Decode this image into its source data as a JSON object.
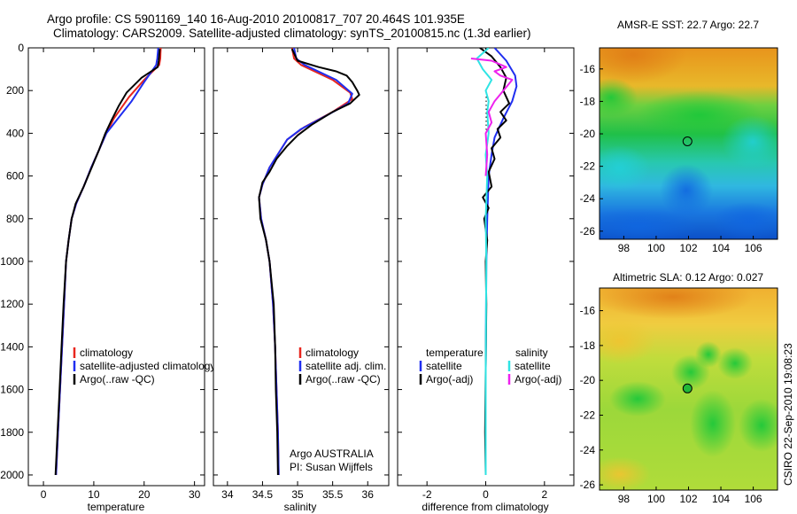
{
  "header": {
    "line1": "Argo profile: CS 5901169_140 16-Aug-2010 20100817_707 20.464S 101.935E",
    "line2": "Climatology: CARS2009. Satellite-adjusted climatology: synTS_20100815.nc (1.3d earlier)"
  },
  "colors": {
    "climatology": "#e8261e",
    "satellite": "#1f2ef0",
    "argo": "#000000",
    "salinity_satellite": "#2fe4e4",
    "salinity_argo": "#ee22ee"
  },
  "chart_data": [
    {
      "type": "line",
      "id": "temperature",
      "xlabel": "temperature",
      "ylabel": "",
      "xlim": [
        -3,
        32
      ],
      "ylim": [
        2050,
        0
      ],
      "xticks": [
        0,
        10,
        20,
        30
      ],
      "yticks": [
        0,
        200,
        400,
        600,
        800,
        1000,
        1200,
        1400,
        1600,
        1800,
        2000
      ],
      "legend": [
        "climatology",
        "satellite-adjusted climatology",
        "Argo(..raw -QC)"
      ],
      "series": [
        {
          "name": "climatology",
          "color": "#e8261e",
          "points": [
            [
              23.3,
              0
            ],
            [
              23.2,
              50
            ],
            [
              23.0,
              80
            ],
            [
              20.0,
              150
            ],
            [
              17.0,
              230
            ],
            [
              14.0,
              330
            ],
            [
              12.5,
              400
            ],
            [
              11.0,
              480
            ],
            [
              9.5,
              560
            ],
            [
              8.0,
              650
            ],
            [
              6.5,
              730
            ],
            [
              5.6,
              800
            ],
            [
              5.0,
              900
            ],
            [
              4.5,
              1000
            ],
            [
              4.1,
              1200
            ],
            [
              3.7,
              1400
            ],
            [
              3.3,
              1600
            ],
            [
              2.9,
              1800
            ],
            [
              2.5,
              2000
            ]
          ]
        },
        {
          "name": "satellite-adjusted climatology",
          "color": "#1f2ef0",
          "points": [
            [
              22.8,
              0
            ],
            [
              22.6,
              50
            ],
            [
              22.4,
              80
            ],
            [
              20.0,
              160
            ],
            [
              17.5,
              250
            ],
            [
              14.5,
              340
            ],
            [
              12.5,
              400
            ],
            [
              11.0,
              480
            ],
            [
              9.5,
              560
            ],
            [
              8.0,
              650
            ],
            [
              6.5,
              730
            ],
            [
              5.6,
              800
            ],
            [
              5.0,
              900
            ],
            [
              4.5,
              1000
            ],
            [
              4.1,
              1200
            ],
            [
              3.7,
              1400
            ],
            [
              3.3,
              1600
            ],
            [
              2.9,
              1800
            ],
            [
              2.5,
              2000
            ]
          ]
        },
        {
          "name": "Argo(..raw -QC)",
          "color": "#000000",
          "points": [
            [
              23.1,
              5
            ],
            [
              22.9,
              60
            ],
            [
              22.7,
              90
            ],
            [
              19.5,
              140
            ],
            [
              16.5,
              210
            ],
            [
              15.0,
              270
            ],
            [
              13.5,
              340
            ],
            [
              12.3,
              400
            ],
            [
              11.0,
              480
            ],
            [
              9.6,
              560
            ],
            [
              8.0,
              650
            ],
            [
              6.4,
              730
            ],
            [
              5.6,
              800
            ],
            [
              5.0,
              900
            ],
            [
              4.5,
              1000
            ],
            [
              4.0,
              1200
            ],
            [
              3.6,
              1400
            ],
            [
              3.2,
              1600
            ],
            [
              2.8,
              1800
            ],
            [
              2.4,
              2000
            ]
          ]
        }
      ]
    },
    {
      "type": "line",
      "id": "salinity",
      "xlabel": "salinity",
      "ylabel": "",
      "xlim": [
        33.8,
        36.3
      ],
      "ylim": [
        2050,
        0
      ],
      "xticks": [
        34,
        34.5,
        35,
        35.5,
        36
      ],
      "legend": [
        "climatology",
        "satellite adj. clim.",
        "Argo(..raw -QC)"
      ],
      "annotations": [
        "Argo AUSTRALIA",
        "PI: Susan Wijffels"
      ],
      "series": [
        {
          "name": "climatology",
          "color": "#e8261e",
          "points": [
            [
              34.92,
              0
            ],
            [
              34.95,
              50
            ],
            [
              35.05,
              80
            ],
            [
              35.5,
              150
            ],
            [
              35.75,
              210
            ],
            [
              35.78,
              240
            ],
            [
              35.5,
              300
            ],
            [
              35.1,
              370
            ],
            [
              34.85,
              430
            ],
            [
              34.6,
              560
            ],
            [
              34.5,
              640
            ],
            [
              34.45,
              700
            ],
            [
              34.48,
              800
            ],
            [
              34.55,
              900
            ],
            [
              34.6,
              1000
            ],
            [
              34.65,
              1200
            ],
            [
              34.68,
              1400
            ],
            [
              34.7,
              1600
            ],
            [
              34.72,
              1800
            ],
            [
              34.73,
              2000
            ]
          ]
        },
        {
          "name": "satellite adj. clim.",
          "color": "#1f2ef0",
          "points": [
            [
              34.95,
              0
            ],
            [
              34.98,
              50
            ],
            [
              35.1,
              80
            ],
            [
              35.55,
              150
            ],
            [
              35.78,
              215
            ],
            [
              35.72,
              260
            ],
            [
              35.45,
              310
            ],
            [
              35.05,
              380
            ],
            [
              34.85,
              430
            ],
            [
              34.6,
              560
            ],
            [
              34.5,
              640
            ],
            [
              34.45,
              700
            ],
            [
              34.48,
              800
            ],
            [
              34.55,
              900
            ],
            [
              34.6,
              1000
            ],
            [
              34.65,
              1200
            ],
            [
              34.68,
              1400
            ],
            [
              34.7,
              1600
            ],
            [
              34.72,
              1800
            ],
            [
              34.73,
              2000
            ]
          ]
        },
        {
          "name": "Argo(..raw -QC)",
          "color": "#000000",
          "points": [
            [
              34.92,
              5
            ],
            [
              35.0,
              60
            ],
            [
              35.3,
              90
            ],
            [
              35.55,
              110
            ],
            [
              35.7,
              130
            ],
            [
              35.78,
              160
            ],
            [
              35.85,
              200
            ],
            [
              35.88,
              220
            ],
            [
              35.75,
              260
            ],
            [
              35.5,
              300
            ],
            [
              35.2,
              360
            ],
            [
              35.0,
              410
            ],
            [
              34.85,
              460
            ],
            [
              34.7,
              520
            ],
            [
              34.6,
              580
            ],
            [
              34.5,
              630
            ],
            [
              34.45,
              700
            ],
            [
              34.47,
              800
            ],
            [
              34.55,
              900
            ],
            [
              34.6,
              1000
            ],
            [
              34.66,
              1200
            ],
            [
              34.68,
              1400
            ],
            [
              34.69,
              1600
            ],
            [
              34.71,
              1800
            ],
            [
              34.72,
              2000
            ]
          ]
        }
      ]
    },
    {
      "type": "line",
      "id": "difference",
      "xlabel": "difference from climatology",
      "ylabel": "",
      "xlim": [
        -3,
        3
      ],
      "ylim": [
        2050,
        0
      ],
      "xticks": [
        -2,
        0,
        2
      ],
      "legend_temperature_title": "temperature",
      "legend_salinity_title": "salinity",
      "legend": [
        "satellite",
        "Argo(-adj)",
        "satellite",
        "Argo(-adj)"
      ],
      "series": [
        {
          "name": "temperature satellite",
          "color": "#1f2ef0",
          "points": [
            [
              0.3,
              0
            ],
            [
              0.7,
              60
            ],
            [
              1.0,
              130
            ],
            [
              1.05,
              180
            ],
            [
              0.9,
              250
            ],
            [
              0.6,
              330
            ],
            [
              0.3,
              420
            ],
            [
              0.2,
              500
            ],
            [
              0.1,
              600
            ],
            [
              0.05,
              800
            ],
            [
              0.02,
              1000
            ],
            [
              0.0,
              1500
            ],
            [
              0.0,
              2000
            ]
          ]
        },
        {
          "name": "temperature Argo(-adj)",
          "color": "#000000",
          "points": [
            [
              -0.2,
              0
            ],
            [
              0.2,
              40
            ],
            [
              0.5,
              90
            ],
            [
              0.7,
              140
            ],
            [
              0.6,
              200
            ],
            [
              0.8,
              260
            ],
            [
              0.5,
              300
            ],
            [
              0.7,
              340
            ],
            [
              0.4,
              380
            ],
            [
              0.5,
              420
            ],
            [
              0.2,
              470
            ],
            [
              0.3,
              520
            ],
            [
              0.1,
              580
            ],
            [
              0.2,
              650
            ],
            [
              -0.1,
              700
            ],
            [
              0.1,
              750
            ],
            [
              -0.05,
              800
            ],
            [
              0.05,
              900
            ],
            [
              0.0,
              1000
            ],
            [
              0.02,
              1200
            ],
            [
              0.0,
              1500
            ],
            [
              -0.02,
              1800
            ],
            [
              0.0,
              2000
            ]
          ]
        },
        {
          "name": "salinity satellite",
          "color": "#2fe4e4",
          "points": [
            [
              0.1,
              0
            ],
            [
              -0.3,
              50
            ],
            [
              -0.1,
              100
            ],
            [
              0.2,
              150
            ],
            [
              0.0,
              200
            ],
            [
              0.1,
              250
            ],
            [
              0.05,
              300
            ],
            [
              0.1,
              400
            ],
            [
              0.0,
              500
            ],
            [
              0.05,
              600
            ],
            [
              0.0,
              800
            ],
            [
              0.02,
              1000
            ],
            [
              0.0,
              1500
            ],
            [
              0.0,
              2000
            ]
          ]
        },
        {
          "name": "salinity Argo(-adj)",
          "color": "#ee22ee",
          "points": [
            [
              -0.5,
              50
            ],
            [
              0.2,
              60
            ],
            [
              0.7,
              90
            ],
            [
              0.3,
              110
            ],
            [
              0.5,
              130
            ],
            [
              0.9,
              150
            ],
            [
              0.6,
              200
            ],
            [
              0.3,
              250
            ],
            [
              0.1,
              300
            ],
            [
              0.2,
              350
            ],
            [
              0.0,
              400
            ],
            [
              0.05,
              500
            ],
            [
              0.0,
              600
            ]
          ]
        }
      ]
    },
    {
      "type": "heatmap",
      "id": "sst-map",
      "title": "AMSR-E SST: 22.7 Argo: 22.7",
      "xlim": [
        96.5,
        107.5
      ],
      "ylim": [
        -26.5,
        -14.7
      ],
      "xticks": [
        98,
        100,
        102,
        104,
        106
      ],
      "yticks": [
        -16,
        -18,
        -20,
        -22,
        -24,
        -26
      ],
      "marker": {
        "lon": 101.935,
        "lat": -20.464,
        "filled": false
      }
    },
    {
      "type": "heatmap",
      "id": "sla-map",
      "title": "Altimetric SLA: 0.12 Argo: 0.027",
      "xlim": [
        96.5,
        107.5
      ],
      "ylim": [
        -26.3,
        -14.7
      ],
      "xticks": [
        98,
        100,
        102,
        104,
        106
      ],
      "yticks": [
        -16,
        -18,
        -20,
        -22,
        -24,
        -26
      ],
      "marker": {
        "lon": 101.935,
        "lat": -20.464,
        "filled": true
      }
    }
  ],
  "footer": {
    "credit": "CSIRO 22-Sep-2010 19:08:23"
  }
}
